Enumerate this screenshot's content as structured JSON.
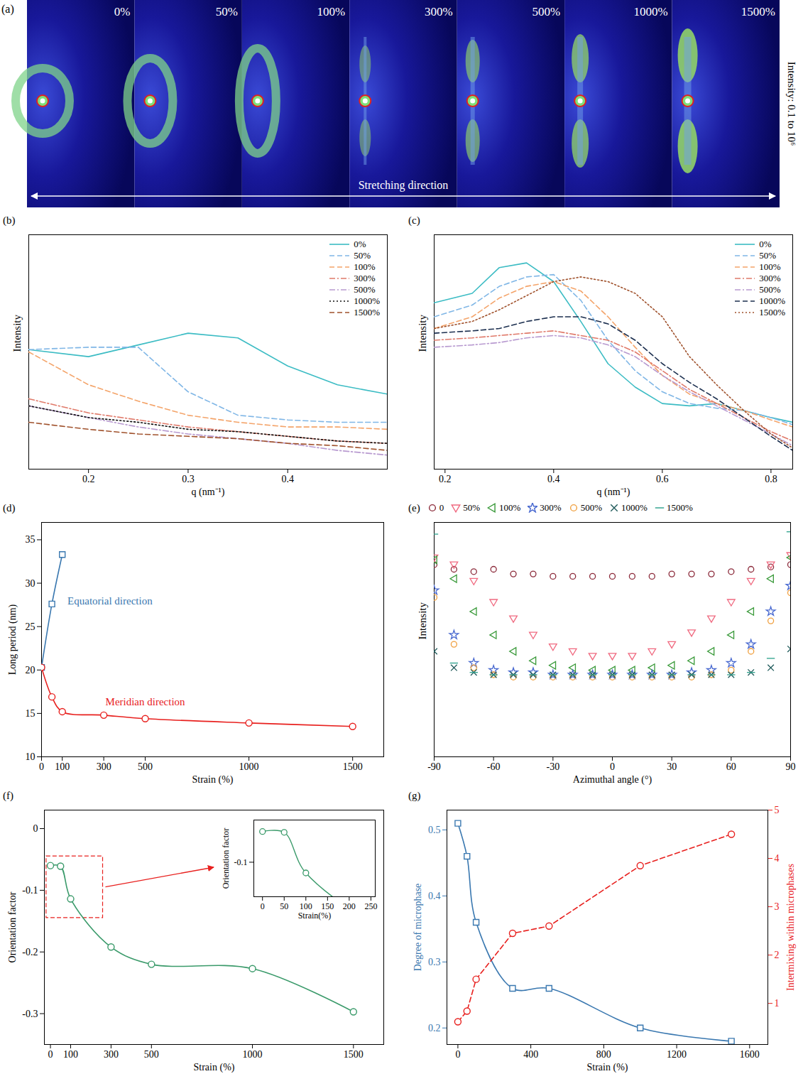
{
  "figure_a": {
    "panel_label": "(a)",
    "frame_labels": [
      "0%",
      "50%",
      "100%",
      "300%",
      "500%",
      "1000%",
      "1500%"
    ],
    "arrow_label": "Stretching direction",
    "color_bar_label": "Intensity: 0.1 to 10⁶"
  },
  "chart_data": [
    {
      "panel_label": "(b)",
      "type": "line",
      "x_label": "q (nm⁻¹)",
      "y_label": "Intensity",
      "tick_labels": "x",
      "legend": "top-right",
      "xlim": [
        0.14,
        0.5
      ],
      "xticks": [
        0.2,
        0.3,
        0.4
      ],
      "ylim": [
        0,
        100
      ],
      "x": [
        0.14,
        0.2,
        0.25,
        0.3,
        0.35,
        0.4,
        0.45,
        0.5
      ],
      "series": [
        {
          "name": "0%",
          "color": "#3cbcc4",
          "line_style": "solid",
          "values": [
            51,
            48,
            53,
            58,
            56,
            44,
            36,
            32
          ]
        },
        {
          "name": "50%",
          "color": "#7fb6e6",
          "line_style": "dashed",
          "values": [
            51,
            52,
            52,
            33,
            23,
            21,
            20,
            20
          ]
        },
        {
          "name": "100%",
          "color": "#f4a46a",
          "line_style": "dashed",
          "values": [
            50,
            36,
            29,
            23,
            20,
            18,
            18,
            17
          ]
        },
        {
          "name": "300%",
          "color": "#e07a6a",
          "line_style": "dashdot",
          "values": [
            30,
            24,
            21,
            18,
            16,
            14,
            12,
            11
          ]
        },
        {
          "name": "500%",
          "color": "#b89ad0",
          "line_style": "dashdot",
          "values": [
            27,
            22,
            18,
            15,
            13,
            11,
            8,
            6
          ]
        },
        {
          "name": "1000%",
          "color": "#111111",
          "line_style": "dotted",
          "values": [
            27,
            22,
            20,
            17,
            16,
            14,
            12,
            11
          ]
        },
        {
          "name": "1500%",
          "color": "#a0522d",
          "line_style": "dashed",
          "values": [
            20,
            17,
            15,
            14,
            13,
            11,
            10,
            8
          ]
        }
      ]
    },
    {
      "panel_label": "(c)",
      "type": "line",
      "x_label": "q (nm⁻¹)",
      "y_label": "Intensity",
      "tick_labels": "x",
      "legend": "top-right",
      "xlim": [
        0.18,
        0.84
      ],
      "xticks": [
        0.2,
        0.4,
        0.6,
        0.8
      ],
      "ylim": [
        0,
        100
      ],
      "x": [
        0.18,
        0.25,
        0.3,
        0.35,
        0.4,
        0.45,
        0.5,
        0.55,
        0.6,
        0.65,
        0.7,
        0.75,
        0.8,
        0.84
      ],
      "series": [
        {
          "name": "0%",
          "color": "#3cbcc4",
          "line_style": "solid",
          "values": [
            71,
            75,
            86,
            88,
            80,
            63,
            45,
            35,
            28,
            27,
            28,
            25,
            22,
            20
          ]
        },
        {
          "name": "50%",
          "color": "#7fb6e6",
          "line_style": "dashed",
          "values": [
            65,
            70,
            78,
            82,
            83,
            72,
            55,
            42,
            33,
            28,
            26,
            25,
            22,
            19
          ]
        },
        {
          "name": "100%",
          "color": "#f4a46a",
          "line_style": "dashed",
          "values": [
            60,
            65,
            73,
            78,
            80,
            76,
            65,
            52,
            40,
            32,
            28,
            25,
            21,
            18
          ]
        },
        {
          "name": "300%",
          "color": "#e07a6a",
          "line_style": "dashdot",
          "values": [
            55,
            56,
            57,
            58,
            59,
            57,
            55,
            50,
            42,
            34,
            28,
            22,
            16,
            12
          ]
        },
        {
          "name": "500%",
          "color": "#b89ad0",
          "line_style": "dashdot",
          "values": [
            52,
            53,
            54,
            56,
            57,
            56,
            53,
            48,
            40,
            33,
            27,
            21,
            15,
            10
          ]
        },
        {
          "name": "1000%",
          "color": "#1c2f4f",
          "line_style": "dashed",
          "values": [
            58,
            59,
            60,
            63,
            65,
            65,
            62,
            55,
            45,
            37,
            30,
            22,
            14,
            8
          ]
        },
        {
          "name": "1500%",
          "color": "#a0522d",
          "line_style": "dotted",
          "values": [
            60,
            63,
            68,
            74,
            80,
            82,
            80,
            75,
            65,
            48,
            36,
            25,
            15,
            9
          ]
        }
      ]
    },
    {
      "panel_label": "(d)",
      "type": "line",
      "x_label": "Strain (%)",
      "y_label": "Long period (nm)",
      "xlim": [
        0,
        1650
      ],
      "xticks": [
        0,
        100,
        300,
        500,
        1000,
        1500
      ],
      "ylim": [
        10,
        37
      ],
      "yticks": [
        10,
        15,
        20,
        25,
        30,
        35
      ],
      "series": [
        {
          "name": "Equatorial direction",
          "color": "#3a78b0",
          "marker": "square",
          "line_style": "solid",
          "x": [
            0,
            50,
            100
          ],
          "values": [
            20.3,
            27.6,
            33.3
          ]
        },
        {
          "name": "Meridian direction",
          "color": "#e8201e",
          "marker": "circle",
          "line_style": "solid",
          "x": [
            0,
            50,
            100,
            300,
            500,
            1000,
            1500
          ],
          "values": [
            20.3,
            16.9,
            15.2,
            14.8,
            14.4,
            13.9,
            13.5
          ]
        }
      ]
    },
    {
      "panel_label": "(e)",
      "type": "scatter",
      "x_label": "Azimuthal angle (°)",
      "y_label": "Intensity",
      "tick_labels": "x",
      "legend": "top",
      "xlim": [
        -90,
        90
      ],
      "xticks": [
        -90,
        -60,
        -30,
        0,
        30,
        60,
        90
      ],
      "ylim": [
        0,
        100
      ],
      "x": [
        -90,
        -80,
        -70,
        -60,
        -50,
        -40,
        -30,
        -20,
        -10,
        0,
        10,
        20,
        30,
        40,
        50,
        60,
        70,
        80,
        90
      ],
      "series": [
        {
          "name": "0",
          "color": "#8b2a3a",
          "marker": "circle",
          "values": [
            82,
            80,
            79,
            80,
            78,
            78,
            77,
            77,
            77,
            77,
            77,
            77,
            78,
            78,
            78,
            79,
            80,
            81,
            82
          ]
        },
        {
          "name": "50%",
          "color": "#f06a80",
          "marker": "triangle-down",
          "values": [
            85,
            82,
            75,
            66,
            59,
            52,
            47,
            45,
            43,
            43,
            43,
            45,
            48,
            53,
            59,
            66,
            75,
            82,
            86
          ]
        },
        {
          "name": "100%",
          "color": "#3a9a3a",
          "marker": "triangle-left",
          "values": [
            84,
            76,
            62,
            52,
            45,
            41,
            39,
            38,
            37,
            37,
            37,
            38,
            39,
            41,
            45,
            52,
            62,
            76,
            85
          ]
        },
        {
          "name": "300%",
          "color": "#4a6ad0",
          "marker": "star",
          "values": [
            71,
            52,
            40,
            37,
            36,
            36,
            35,
            35,
            35,
            35,
            35,
            35,
            35,
            36,
            37,
            40,
            48,
            62,
            73
          ]
        },
        {
          "name": "500%",
          "color": "#f0a040",
          "marker": "circle",
          "values": [
            68,
            48,
            38,
            35,
            34,
            34,
            34,
            34,
            34,
            34,
            34,
            34,
            34,
            34,
            35,
            37,
            45,
            58,
            70
          ]
        },
        {
          "name": "1000%",
          "color": "#1f5a5a",
          "marker": "times",
          "values": [
            45,
            38,
            36,
            35,
            35,
            35,
            35,
            35,
            35,
            35,
            35,
            35,
            35,
            35,
            35,
            35,
            36,
            38,
            46
          ]
        },
        {
          "name": "1500%",
          "color": "#2aa08a",
          "marker": "dash",
          "values": [
            95,
            40,
            36,
            35,
            35,
            35,
            35,
            35,
            35,
            35,
            35,
            35,
            35,
            35,
            35,
            35,
            36,
            42,
            96
          ]
        }
      ]
    },
    {
      "panel_label": "(f)",
      "type": "line",
      "x_label": "Strain (%)",
      "y_label": "Orientation factor",
      "xlim": [
        -30,
        1650
      ],
      "xticks": [
        0,
        100,
        300,
        500,
        1000,
        1500
      ],
      "ylim": [
        -0.35,
        0.03
      ],
      "yticks": [
        -0.3,
        -0.2,
        -0.1,
        0
      ],
      "series": [
        {
          "name": "Orientation factor",
          "color": "#3a9a6a",
          "marker": "circle",
          "line_style": "solid",
          "x": [
            0,
            50,
            100,
            300,
            500,
            1000,
            1500
          ],
          "values": [
            -0.06,
            -0.061,
            -0.114,
            -0.192,
            -0.22,
            -0.227,
            -0.297
          ]
        }
      ]
    },
    {
      "type": "line",
      "x_label": "Strain(%)",
      "y_label": "Orientation factor",
      "xlim": [
        -20,
        260
      ],
      "xticks": [
        0,
        50,
        100,
        150,
        200,
        250
      ],
      "ylim": [
        -0.145,
        -0.045
      ],
      "yticks": [
        -0.1
      ],
      "series": [
        {
          "name": "Orientation factor",
          "color": "#3a9a6a",
          "marker": "circle",
          "line_style": "solid",
          "x": [
            0,
            50,
            100
          ],
          "values": [
            -0.06,
            -0.061,
            -0.114
          ]
        }
      ]
    },
    {
      "panel_label": "(g)",
      "type": "line",
      "x_label": "Strain (%)",
      "y_label": "Degree of microphase",
      "y2_label": "Intermixing within microphases",
      "xlim": [
        -60,
        1700
      ],
      "xticks": [
        0,
        400,
        800,
        1200,
        1600
      ],
      "ylim": [
        0.175,
        0.53
      ],
      "yticks": [
        0.2,
        0.3,
        0.4,
        0.5
      ],
      "y2lim": [
        0.15,
        5
      ],
      "y2ticks": [
        1,
        2,
        3,
        4,
        5
      ],
      "series": [
        {
          "name": "Degree of microphase",
          "color": "#3a78b0",
          "marker": "square",
          "line_style": "solid",
          "axis": "y",
          "x": [
            0,
            50,
            100,
            300,
            500,
            1000,
            1500
          ],
          "values": [
            0.51,
            0.46,
            0.36,
            0.26,
            0.26,
            0.2,
            0.18
          ]
        },
        {
          "name": "Intermixing within microphases",
          "color": "#e8201e",
          "marker": "circle",
          "line_style": "dashed",
          "axis": "y2",
          "x": [
            0,
            50,
            100,
            300,
            500,
            1000,
            1500
          ],
          "values": [
            0.62,
            0.84,
            1.5,
            2.45,
            2.6,
            3.85,
            4.5
          ]
        }
      ]
    }
  ]
}
